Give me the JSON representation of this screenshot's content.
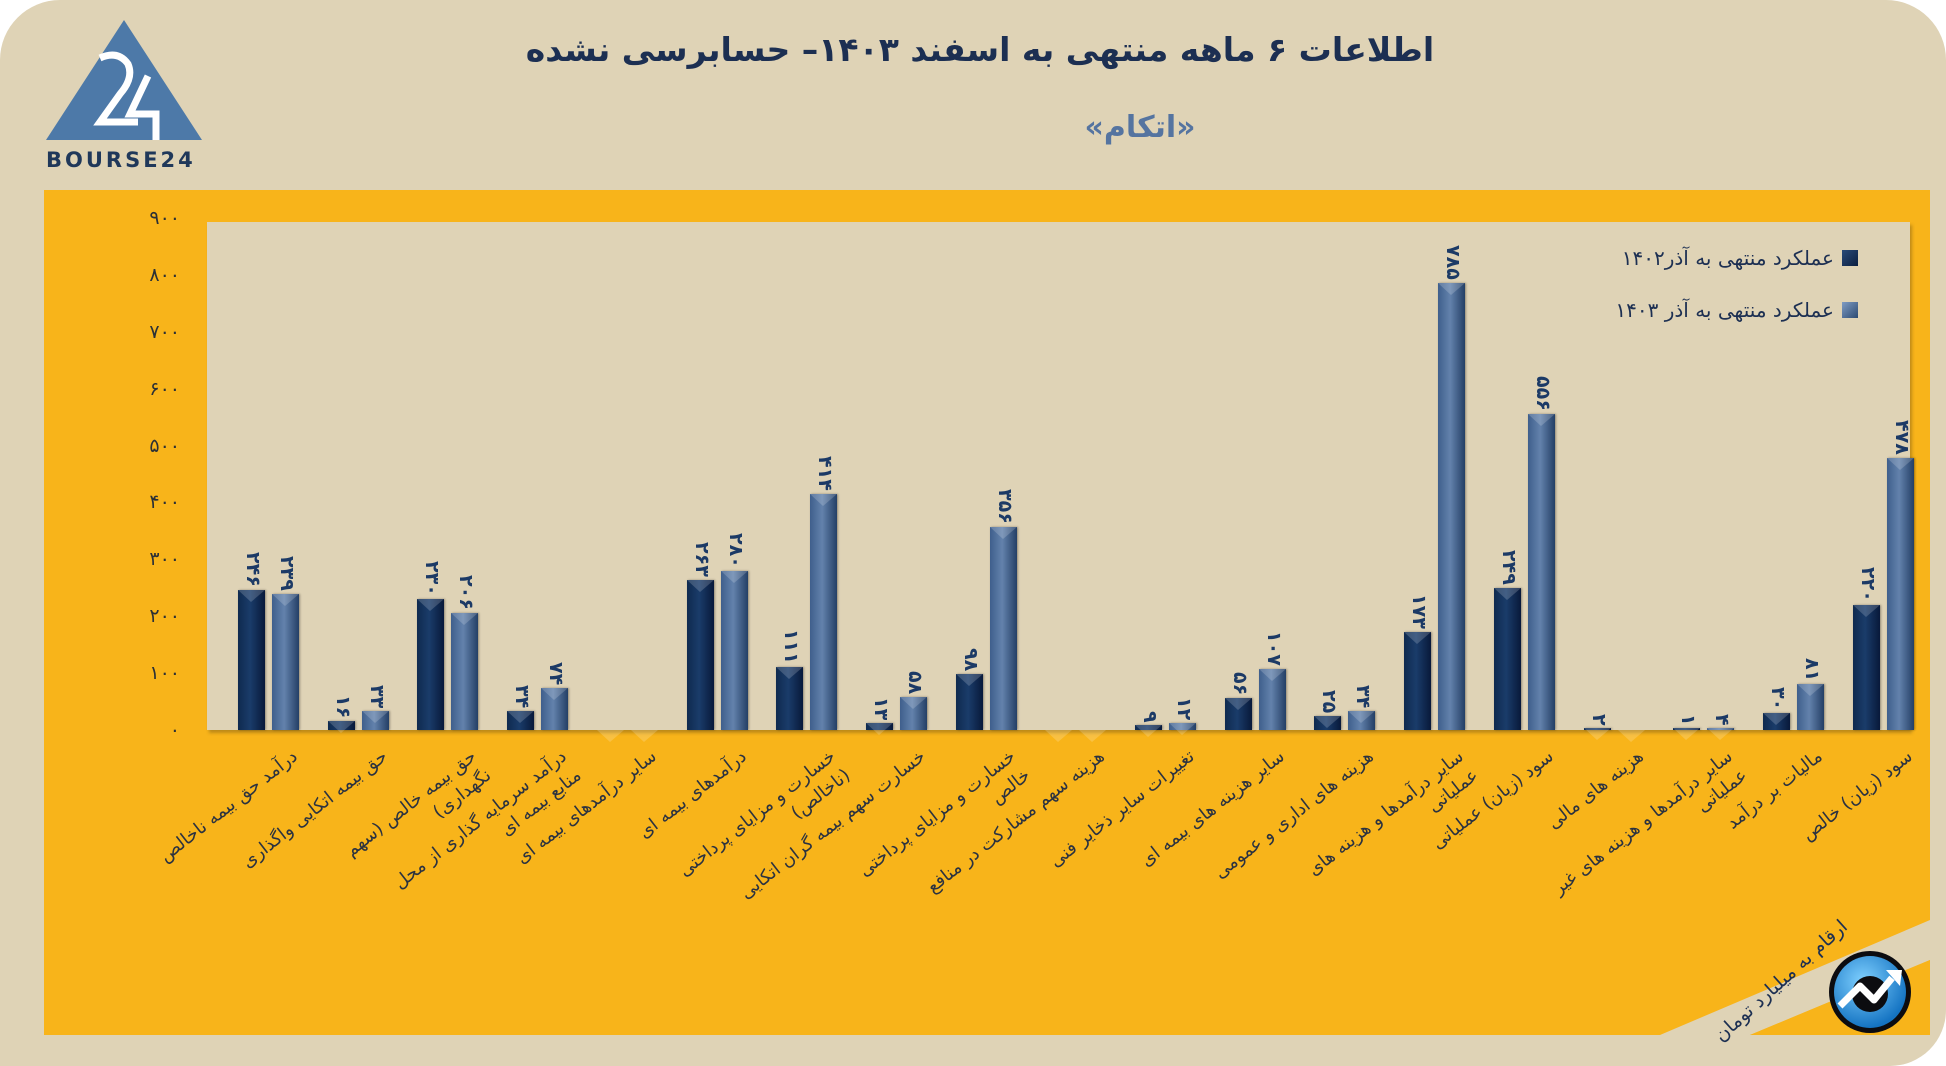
{
  "header": {
    "title": "اطلاعات ۶ ماهه منتهی به اسفند  ۱۴۰۳– حسابرسی نشده",
    "subtitle": "«اتکام»",
    "logo_text": "BOURSE24"
  },
  "footer": {
    "unit_note": "ارقام به میلیارد تومان"
  },
  "icons": {
    "logo": "bourse24-triangle-logo-icon",
    "brand_badge": "trend-arrow-circle-icon"
  },
  "colors": {
    "background": "#dfd3b6",
    "panel": "#f8b41a",
    "series1": "#12305a",
    "series2": "#4b6b97",
    "title": "#1c2f52",
    "subtitle": "#5574a0"
  },
  "legend": {
    "items": [
      {
        "label": "عملکرد منتهی به آذر۱۴۰۲",
        "color": "#12305a"
      },
      {
        "label": "عملکرد منتهی به آذر ۱۴۰۳",
        "color": "#4b6b97"
      }
    ]
  },
  "axis": {
    "y_ticks": [
      "۰",
      "۱۰۰",
      "۲۰۰",
      "۳۰۰",
      "۴۰۰",
      "۵۰۰",
      "۶۰۰",
      "۷۰۰",
      "۸۰۰",
      "۹۰۰"
    ]
  },
  "chart_data": {
    "type": "bar",
    "title": "اطلاعات ۶ ماهه منتهی به اسفند ۱۴۰۳– حسابرسی نشده",
    "subtitle": "«اتکام»",
    "xlabel": "",
    "ylabel": "ارقام به میلیارد تومان",
    "ylim": [
      0,
      900
    ],
    "y_ticks": [
      0,
      100,
      200,
      300,
      400,
      500,
      600,
      700,
      800,
      900
    ],
    "grid": false,
    "legend_position": "top-right",
    "categories": [
      "درآمد حق بیمه ناخالص",
      "حق بیمه اتکایی واگذاری",
      "حق بیمه خالص (سهم نگهداری)",
      "درآمد سرمایه گذاری از محل منابع بیمه ای",
      "سایر درآمدهای بیمه ای",
      "درآمدهای بیمه ای",
      "خسارت و مزایای پرداختی (ناخالص)",
      "خسارت سهم بیمه گران اتکایی",
      "خسارت و مزایای پرداختی خالص",
      "هزینه سهم مشارکت در منافع",
      "تغییرات سایر ذخایر فنی",
      "سایر هزینه های بیمه ای",
      "هزینه های اداری و عمومی",
      "سایر درآمدها و هزینه های عملیاتی",
      "سود (زیان) عملیاتی",
      "هزینه های مالی",
      "سایر درآمدها و هزینه های غیر عملیاتی",
      "مالیات بر درآمد",
      "سود (زیان) خالص"
    ],
    "series": [
      {
        "name": "عملکرد منتهی به آذر۱۴۰۲",
        "values": [
          246,
          16,
          230,
          34,
          0,
          263,
          111,
          13,
          98,
          0,
          9,
          56,
          25,
          173,
          249,
          2,
          1,
          30,
          220
        ],
        "labels": [
          "۲۴۶",
          "۱۶",
          "۲۳۰",
          "۳۴",
          "",
          "۲۶۳",
          "۱۱۱",
          "۱۳",
          "۹۸",
          "",
          "۹",
          "۵۶",
          "۲۵",
          "۱۷۳",
          "۲۴۹",
          "۲",
          "۱",
          "۳۰",
          "۲۲۰"
        ]
      },
      {
        "name": "عملکرد منتهی به آذر ۱۴۰۳",
        "values": [
          239,
          33,
          206,
          74,
          0,
          280,
          414,
          58,
          356,
          0,
          12,
          107,
          34,
          785,
          556,
          0,
          4,
          81,
          478
        ],
        "labels": [
          "۲۳۹",
          "۳۳",
          "۲۰۶",
          "۷۴",
          "",
          "۲۸۰",
          "۴۱۴",
          "۵۸",
          "۳۵۶",
          "",
          "۱۲",
          "۱۰۷",
          "۳۴",
          "۷۸۵",
          "۵۵۶",
          "",
          "۴",
          "۸۱",
          "۴۷۸"
        ]
      }
    ]
  }
}
